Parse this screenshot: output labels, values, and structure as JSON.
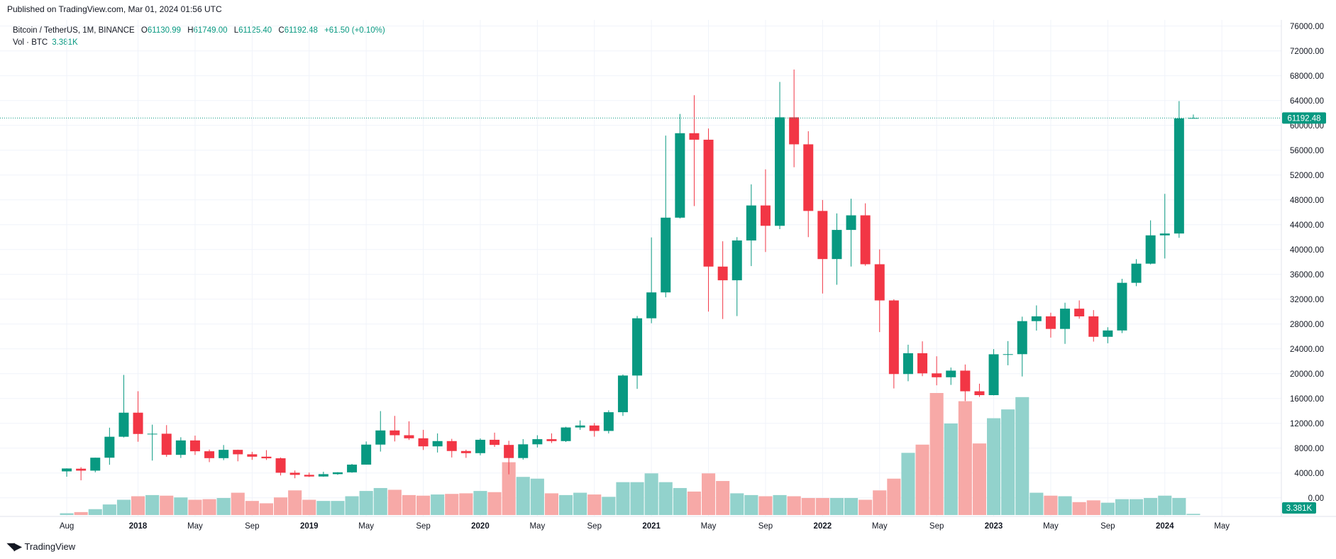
{
  "header": {
    "published": "Published on TradingView.com, Mar 01, 2024 01:56 UTC"
  },
  "legend": {
    "symbol": "Bitcoin / TetherUS, 1M, BINANCE",
    "open_label": "O",
    "open": "61130.99",
    "high_label": "H",
    "high": "61749.00",
    "low_label": "L",
    "low": "61125.40",
    "close_label": "C",
    "close": "61192.48",
    "change": "+61.50 (+0.10%)",
    "vol_label": "Vol · BTC",
    "vol_value": "3.381K"
  },
  "price_badge": "61192.48",
  "vol_badge": "3.381K",
  "footer": {
    "brand": "TradingView"
  },
  "colors": {
    "up": "#089981",
    "down": "#f23645",
    "up_vol": "#92d2cc",
    "down_vol": "#f7a9a7",
    "grid": "#f0f3fa",
    "last_line": "#089981"
  },
  "chart_data": {
    "type": "candlestick",
    "price_range": [
      -3000,
      77000
    ],
    "price_ticks": [
      76000,
      72000,
      68000,
      64000,
      60000,
      56000,
      52000,
      48000,
      44000,
      40000,
      36000,
      32000,
      28000,
      24000,
      20000,
      16000,
      12000,
      8000,
      4000,
      0
    ],
    "price_tick_labels": [
      "76000.00",
      "72000.00",
      "68000.00",
      "64000.00",
      "60000.00",
      "56000.00",
      "52000.00",
      "48000.00",
      "44000.00",
      "40000.00",
      "36000.00",
      "32000.00",
      "28000.00",
      "24000.00",
      "20000.00",
      "16000.00",
      "12000.00",
      "8000.00",
      "4000.00",
      "0.00"
    ],
    "time_labels": [
      {
        "label": "Aug",
        "index": 0
      },
      {
        "label": "2018",
        "index": 5
      },
      {
        "label": "May",
        "index": 9
      },
      {
        "label": "Sep",
        "index": 13
      },
      {
        "label": "2019",
        "index": 17
      },
      {
        "label": "May",
        "index": 21
      },
      {
        "label": "Sep",
        "index": 25
      },
      {
        "label": "2020",
        "index": 29
      },
      {
        "label": "May",
        "index": 33
      },
      {
        "label": "Sep",
        "index": 37
      },
      {
        "label": "2021",
        "index": 41
      },
      {
        "label": "May",
        "index": 45
      },
      {
        "label": "Sep",
        "index": 49
      },
      {
        "label": "2022",
        "index": 53
      },
      {
        "label": "May",
        "index": 57
      },
      {
        "label": "Sep",
        "index": 61
      },
      {
        "label": "2023",
        "index": 65
      },
      {
        "label": "May",
        "index": 69
      },
      {
        "label": "Sep",
        "index": 73
      },
      {
        "label": "2024",
        "index": 77
      },
      {
        "label": "May",
        "index": 81
      }
    ],
    "candles": [
      {
        "o": 4261,
        "h": 4745,
        "l": 3400,
        "c": 4724,
        "v": 0.3
      },
      {
        "o": 4690,
        "h": 4939,
        "l": 2817,
        "c": 4378,
        "v": 0.5
      },
      {
        "o": 4378,
        "h": 6470,
        "l": 4110,
        "c": 6463,
        "v": 1.0
      },
      {
        "o": 6463,
        "h": 11300,
        "l": 5325,
        "c": 9838,
        "v": 1.8
      },
      {
        "o": 9838,
        "h": 19798,
        "l": 9722,
        "c": 13716,
        "v": 2.6
      },
      {
        "o": 13716,
        "h": 17176,
        "l": 9035,
        "c": 10285,
        "v": 3.2
      },
      {
        "o": 10285,
        "h": 11786,
        "l": 6000,
        "c": 10326,
        "v": 3.4
      },
      {
        "o": 10326,
        "h": 11710,
        "l": 6600,
        "c": 6923,
        "v": 3.3
      },
      {
        "o": 6923,
        "h": 9759,
        "l": 6425,
        "c": 9246,
        "v": 3.0
      },
      {
        "o": 9246,
        "h": 10020,
        "l": 6913,
        "c": 7500,
        "v": 2.6
      },
      {
        "o": 7500,
        "h": 7770,
        "l": 5750,
        "c": 6391,
        "v": 2.7
      },
      {
        "o": 6391,
        "h": 8507,
        "l": 6070,
        "c": 7730,
        "v": 2.9
      },
      {
        "o": 7730,
        "h": 7760,
        "l": 5880,
        "c": 7011,
        "v": 3.8
      },
      {
        "o": 7011,
        "h": 7410,
        "l": 6117,
        "c": 6626,
        "v": 2.4
      },
      {
        "o": 6626,
        "h": 7680,
        "l": 6100,
        "c": 6369,
        "v": 2.0
      },
      {
        "o": 6369,
        "h": 6500,
        "l": 3600,
        "c": 4041,
        "v": 3.0
      },
      {
        "o": 4041,
        "h": 4400,
        "l": 3150,
        "c": 3702,
        "v": 4.2
      },
      {
        "o": 3702,
        "h": 4070,
        "l": 3349,
        "c": 3434,
        "v": 2.6
      },
      {
        "o": 3434,
        "h": 4200,
        "l": 3400,
        "c": 3814,
        "v": 2.4
      },
      {
        "o": 3814,
        "h": 4140,
        "l": 3700,
        "c": 4105,
        "v": 2.4
      },
      {
        "o": 4105,
        "h": 5467,
        "l": 4040,
        "c": 5350,
        "v": 3.2
      },
      {
        "o": 5350,
        "h": 9074,
        "l": 5340,
        "c": 8574,
        "v": 4.1
      },
      {
        "o": 8574,
        "h": 13970,
        "l": 7450,
        "c": 10854,
        "v": 4.6
      },
      {
        "o": 10854,
        "h": 13200,
        "l": 9080,
        "c": 10085,
        "v": 4.3
      },
      {
        "o": 10085,
        "h": 12325,
        "l": 9320,
        "c": 9588,
        "v": 3.4
      },
      {
        "o": 9588,
        "h": 10950,
        "l": 7710,
        "c": 8289,
        "v": 3.3
      },
      {
        "o": 8289,
        "h": 10370,
        "l": 7300,
        "c": 9140,
        "v": 3.5
      },
      {
        "o": 9140,
        "h": 9500,
        "l": 6500,
        "c": 7541,
        "v": 3.6
      },
      {
        "o": 7541,
        "h": 7750,
        "l": 6435,
        "c": 7195,
        "v": 3.7
      },
      {
        "o": 7195,
        "h": 9580,
        "l": 6850,
        "c": 9350,
        "v": 4.1
      },
      {
        "o": 9350,
        "h": 10500,
        "l": 8200,
        "c": 8523,
        "v": 3.9
      },
      {
        "o": 8523,
        "h": 9188,
        "l": 3782,
        "c": 6410,
        "v": 9.0
      },
      {
        "o": 6410,
        "h": 9460,
        "l": 6150,
        "c": 8620,
        "v": 6.5
      },
      {
        "o": 8620,
        "h": 10080,
        "l": 8106,
        "c": 9448,
        "v": 6.2
      },
      {
        "o": 9448,
        "h": 10380,
        "l": 8833,
        "c": 9138,
        "v": 3.7
      },
      {
        "o": 9138,
        "h": 11444,
        "l": 9000,
        "c": 11335,
        "v": 3.4
      },
      {
        "o": 11335,
        "h": 12468,
        "l": 10950,
        "c": 11650,
        "v": 3.8
      },
      {
        "o": 11650,
        "h": 12050,
        "l": 9850,
        "c": 10776,
        "v": 3.5
      },
      {
        "o": 10776,
        "h": 14100,
        "l": 10370,
        "c": 13791,
        "v": 3.1
      },
      {
        "o": 13791,
        "h": 19863,
        "l": 13195,
        "c": 19700,
        "v": 5.6
      },
      {
        "o": 19700,
        "h": 29300,
        "l": 17550,
        "c": 28923,
        "v": 5.6
      },
      {
        "o": 28923,
        "h": 41950,
        "l": 28130,
        "c": 33092,
        "v": 7.1
      },
      {
        "o": 33092,
        "h": 58352,
        "l": 32300,
        "c": 45135,
        "v": 5.6
      },
      {
        "o": 45135,
        "h": 61844,
        "l": 45000,
        "c": 58740,
        "v": 4.6
      },
      {
        "o": 58740,
        "h": 64854,
        "l": 47000,
        "c": 57694,
        "v": 4.0
      },
      {
        "o": 57694,
        "h": 59500,
        "l": 30000,
        "c": 37253,
        "v": 7.1
      },
      {
        "o": 37253,
        "h": 41330,
        "l": 28805,
        "c": 35045,
        "v": 5.8
      },
      {
        "o": 35045,
        "h": 42000,
        "l": 29278,
        "c": 41461,
        "v": 3.7
      },
      {
        "o": 41461,
        "h": 50500,
        "l": 37332,
        "c": 47100,
        "v": 3.4
      },
      {
        "o": 47100,
        "h": 52920,
        "l": 39600,
        "c": 43824,
        "v": 3.2
      },
      {
        "o": 43824,
        "h": 66999,
        "l": 43290,
        "c": 61300,
        "v": 3.4
      },
      {
        "o": 61300,
        "h": 69000,
        "l": 53256,
        "c": 56950,
        "v": 3.2
      },
      {
        "o": 56950,
        "h": 59053,
        "l": 42000,
        "c": 46217,
        "v": 2.9
      },
      {
        "o": 46217,
        "h": 47990,
        "l": 32917,
        "c": 38466,
        "v": 2.9
      },
      {
        "o": 38466,
        "h": 45821,
        "l": 34322,
        "c": 43160,
        "v": 2.9
      },
      {
        "o": 43160,
        "h": 48189,
        "l": 37260,
        "c": 45510,
        "v": 2.9
      },
      {
        "o": 45510,
        "h": 47444,
        "l": 37386,
        "c": 37630,
        "v": 2.6
      },
      {
        "o": 37630,
        "h": 40023,
        "l": 26700,
        "c": 31801,
        "v": 4.2
      },
      {
        "o": 31801,
        "h": 31982,
        "l": 17622,
        "c": 19942,
        "v": 6.2
      },
      {
        "o": 19942,
        "h": 24668,
        "l": 18782,
        "c": 23293,
        "v": 10.6
      },
      {
        "o": 23293,
        "h": 25211,
        "l": 19600,
        "c": 20050,
        "v": 12.0
      },
      {
        "o": 20050,
        "h": 22800,
        "l": 18125,
        "c": 19423,
        "v": 20.8
      },
      {
        "o": 19423,
        "h": 20988,
        "l": 18190,
        "c": 20490,
        "v": 15.6
      },
      {
        "o": 20490,
        "h": 21480,
        "l": 15588,
        "c": 17164,
        "v": 19.4
      },
      {
        "o": 17164,
        "h": 18387,
        "l": 16256,
        "c": 16542,
        "v": 12.2
      },
      {
        "o": 16542,
        "h": 23960,
        "l": 16500,
        "c": 23125,
        "v": 16.5
      },
      {
        "o": 23125,
        "h": 25250,
        "l": 21351,
        "c": 23141,
        "v": 18.0
      },
      {
        "o": 23141,
        "h": 29184,
        "l": 19549,
        "c": 28465,
        "v": 20.1
      },
      {
        "o": 28465,
        "h": 31000,
        "l": 26942,
        "c": 29233,
        "v": 3.8
      },
      {
        "o": 29233,
        "h": 29820,
        "l": 25811,
        "c": 27210,
        "v": 3.3
      },
      {
        "o": 27210,
        "h": 31431,
        "l": 24800,
        "c": 30472,
        "v": 3.2
      },
      {
        "o": 30472,
        "h": 31804,
        "l": 28860,
        "c": 29230,
        "v": 2.2
      },
      {
        "o": 29230,
        "h": 30244,
        "l": 25166,
        "c": 25940,
        "v": 2.5
      },
      {
        "o": 25940,
        "h": 27483,
        "l": 24901,
        "c": 26962,
        "v": 2.1
      },
      {
        "o": 26962,
        "h": 35280,
        "l": 26538,
        "c": 34639,
        "v": 2.7
      },
      {
        "o": 34639,
        "h": 38450,
        "l": 34097,
        "c": 37723,
        "v": 2.7
      },
      {
        "o": 37723,
        "h": 44700,
        "l": 37600,
        "c": 42284,
        "v": 2.9
      },
      {
        "o": 42284,
        "h": 48969,
        "l": 38555,
        "c": 42580,
        "v": 3.3
      },
      {
        "o": 42580,
        "h": 63913,
        "l": 41884,
        "c": 61130,
        "v": 2.9
      },
      {
        "o": 61130,
        "h": 61749,
        "l": 61125,
        "c": 61192,
        "v": 0.2
      }
    ],
    "volume_unit": "relative",
    "last_price": 61192.48
  }
}
